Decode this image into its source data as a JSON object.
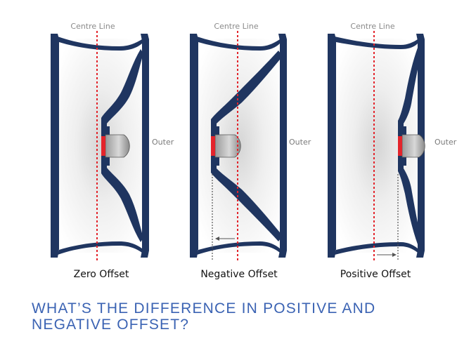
{
  "labels": {
    "centre_line": "Centre Line",
    "outer": "Outer"
  },
  "panels": [
    {
      "caption": "Zero Offset"
    },
    {
      "caption": "Negative Offset"
    },
    {
      "caption": "Positive Offset"
    }
  ],
  "heading": "WHAT’S THE DIFFERENCE IN POSITIVE AND NEGATIVE OFFSET?",
  "colors": {
    "wheel_navy": "#1f3560",
    "centre_line": "#e3242b",
    "hub_face": "#e3242b",
    "heading": "#3b63b3",
    "guide_line": "#555555"
  }
}
